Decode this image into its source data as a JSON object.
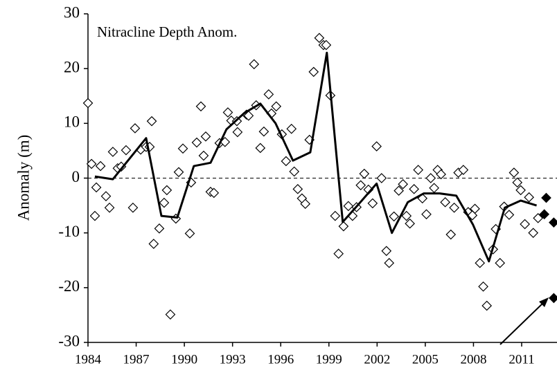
{
  "chart_data": {
    "type": "scatter",
    "annotation": "Nitracline Depth Anom.",
    "y_label": "Anomaly (m)",
    "xlim": [
      1984,
      2013.2
    ],
    "ylim": [
      -30,
      30
    ],
    "xticks": [
      1984,
      1987,
      1990,
      1993,
      1996,
      1999,
      2002,
      2005,
      2008,
      2011
    ],
    "yticks": [
      -30,
      -20,
      -10,
      0,
      10,
      20,
      30
    ],
    "zero_line": "dashed",
    "series": [
      {
        "kind": "points",
        "marker": "open-diamond",
        "color": "#000000",
        "x": [
          1984.0,
          1984.22,
          1984.43,
          1984.52,
          1984.78,
          1985.12,
          1985.34,
          1985.55,
          1985.85,
          1986.07,
          1986.37,
          1986.8,
          1986.93,
          1987.28,
          1987.62,
          1987.84,
          1987.97,
          1988.09,
          1988.44,
          1988.74,
          1988.91,
          1989.13,
          1989.47,
          1989.65,
          1989.91,
          1990.34,
          1990.42,
          1990.77,
          1991.03,
          1991.2,
          1991.33,
          1991.63,
          1991.84,
          1992.19,
          1992.53,
          1992.71,
          1992.92,
          1993.31,
          1993.27,
          1993.87,
          1994.0,
          1994.34,
          1994.47,
          1994.73,
          1994.95,
          1995.25,
          1995.42,
          1995.72,
          1996.07,
          1996.33,
          1996.67,
          1996.84,
          1997.06,
          1997.32,
          1997.53,
          1997.79,
          1998.05,
          1998.4,
          1998.66,
          1998.83,
          1999.09,
          1999.39,
          1999.6,
          1999.91,
          2000.21,
          2000.47,
          2000.72,
          2000.98,
          2001.2,
          2001.46,
          2001.72,
          2001.97,
          2002.28,
          2002.58,
          2002.75,
          2003.05,
          2003.35,
          2003.61,
          2003.83,
          2004.04,
          2004.3,
          2004.56,
          2004.82,
          2005.07,
          2005.34,
          2005.55,
          2005.77,
          2005.98,
          2006.24,
          2006.59,
          2006.8,
          2007.06,
          2007.37,
          2007.67,
          2007.93,
          2008.09,
          2008.4,
          2008.61,
          2008.83,
          2009.22,
          2009.39,
          2009.65,
          2009.91,
          2010.22,
          2010.52,
          2010.73,
          2010.94,
          2011.2,
          2011.46,
          2011.72,
          2012.02
        ],
        "values": [
          13.7,
          2.6,
          -6.9,
          -1.7,
          2.2,
          -3.3,
          -5.4,
          4.8,
          1.8,
          2.1,
          5.1,
          -5.4,
          9.1,
          5.2,
          5.7,
          5.7,
          10.4,
          -12,
          -9.2,
          -4.5,
          -2.2,
          -24.9,
          -7.4,
          1.1,
          5.4,
          -10.1,
          -0.8,
          6.5,
          13.1,
          4.1,
          7.6,
          -2.5,
          -2.7,
          6.4,
          6.6,
          12,
          10.5,
          8.4,
          10.4,
          11.6,
          11.4,
          20.8,
          13.3,
          5.5,
          8.5,
          15.3,
          11.8,
          13.1,
          8,
          3.1,
          9,
          1.2,
          -2,
          -3.7,
          -4.7,
          7,
          19.4,
          25.6,
          24.3,
          24.3,
          15.1,
          -6.9,
          -13.8,
          -8.8,
          -5.1,
          -6.9,
          -5.3,
          -1.3,
          0.8,
          -2.1,
          -4.6,
          5.8,
          0,
          -13.3,
          -15.5,
          -7,
          -2.3,
          -1.1,
          -6.9,
          -8.3,
          -2,
          1.5,
          -3.7,
          -6.6,
          0,
          -1.8,
          1.5,
          0.7,
          -4.4,
          -10.3,
          -5.4,
          1,
          1.5,
          -6.2,
          -6.8,
          -5.6,
          -15.5,
          -19.8,
          -23.3,
          -13,
          -9.3,
          -15.5,
          -5.2,
          -6.7,
          1,
          -0.8,
          -2.2,
          -8.4,
          -3.5,
          -10,
          -7.3
        ]
      },
      {
        "kind": "points",
        "marker": "filled-diamond",
        "color": "#000000",
        "x": [
          2012.41,
          2012.53,
          2013.0,
          2013.0
        ],
        "values": [
          -6.6,
          -3.6,
          -8.1,
          -21.9
        ]
      },
      {
        "kind": "line",
        "color": "#000000",
        "x": [
          1984.43,
          1985.55,
          1987.62,
          1988.57,
          1989.56,
          1990.59,
          1991.63,
          1992.62,
          1993.74,
          1994.73,
          1995.68,
          1996.76,
          1997.84,
          1998.87,
          1999.86,
          2000.9,
          2001.97,
          2002.92,
          2003.91,
          2004.9,
          2005.9,
          2006.93,
          2007.97,
          2008.96,
          2009.95,
          2010.94,
          2011.93
        ],
        "values": [
          0.3,
          -0.2,
          7.3,
          -6.9,
          -7.2,
          2.2,
          2.8,
          8.9,
          11.9,
          13.6,
          10,
          3.2,
          4.7,
          22.9,
          -8,
          -4.6,
          -1,
          -10,
          -4.4,
          -2.8,
          -2.8,
          -3.2,
          -8.5,
          -15.2,
          -5.4,
          -4.1,
          -5
        ]
      }
    ]
  }
}
